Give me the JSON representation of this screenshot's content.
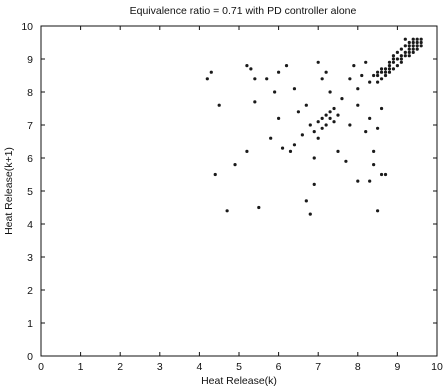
{
  "chart_data": {
    "type": "scatter",
    "title": "Equivalence ratio = 0.71 with PD controller alone",
    "xlabel": "Heat Release(k)",
    "ylabel": "Heat Release(k+1)",
    "xlim": [
      0,
      10
    ],
    "ylim": [
      0,
      10
    ],
    "x_ticks": [
      "0",
      "1",
      "2",
      "3",
      "4",
      "5",
      "6",
      "7",
      "8",
      "9",
      "10"
    ],
    "y_ticks": [
      "0",
      "1",
      "2",
      "3",
      "4",
      "5",
      "6",
      "7",
      "8",
      "9",
      "10"
    ],
    "grid": false,
    "marker_color": "#1a1a1a",
    "points": [
      [
        4.2,
        8.4
      ],
      [
        4.3,
        8.6
      ],
      [
        4.5,
        7.6
      ],
      [
        4.4,
        5.5
      ],
      [
        4.7,
        4.4
      ],
      [
        4.9,
        5.8
      ],
      [
        5.2,
        8.8
      ],
      [
        5.3,
        8.7
      ],
      [
        5.4,
        8.4
      ],
      [
        5.4,
        7.7
      ],
      [
        5.2,
        6.2
      ],
      [
        5.5,
        4.5
      ],
      [
        5.7,
        8.4
      ],
      [
        5.8,
        6.6
      ],
      [
        5.9,
        8.0
      ],
      [
        6.0,
        7.2
      ],
      [
        6.1,
        6.3
      ],
      [
        6.0,
        8.6
      ],
      [
        6.2,
        8.8
      ],
      [
        6.3,
        6.2
      ],
      [
        6.4,
        8.1
      ],
      [
        6.4,
        6.4
      ],
      [
        6.5,
        7.4
      ],
      [
        6.6,
        6.7
      ],
      [
        6.7,
        4.7
      ],
      [
        6.8,
        4.3
      ],
      [
        6.9,
        5.2
      ],
      [
        6.9,
        6.0
      ],
      [
        6.7,
        7.6
      ],
      [
        6.8,
        7.0
      ],
      [
        6.9,
        6.8
      ],
      [
        7.0,
        7.1
      ],
      [
        7.0,
        6.6
      ],
      [
        7.1,
        7.2
      ],
      [
        7.1,
        6.9
      ],
      [
        7.2,
        7.3
      ],
      [
        7.2,
        7.0
      ],
      [
        7.3,
        7.2
      ],
      [
        7.3,
        7.4
      ],
      [
        7.4,
        7.1
      ],
      [
        7.4,
        7.5
      ],
      [
        7.5,
        7.3
      ],
      [
        7.0,
        8.9
      ],
      [
        7.1,
        8.4
      ],
      [
        7.2,
        8.6
      ],
      [
        7.3,
        8.0
      ],
      [
        7.5,
        6.2
      ],
      [
        7.6,
        7.8
      ],
      [
        7.7,
        5.9
      ],
      [
        7.8,
        8.4
      ],
      [
        7.9,
        8.8
      ],
      [
        7.8,
        7.0
      ],
      [
        8.0,
        5.3
      ],
      [
        8.0,
        7.6
      ],
      [
        8.1,
        8.5
      ],
      [
        8.2,
        6.8
      ],
      [
        8.2,
        8.9
      ],
      [
        8.3,
        5.3
      ],
      [
        8.3,
        7.2
      ],
      [
        8.4,
        6.2
      ],
      [
        8.4,
        5.8
      ],
      [
        8.5,
        4.4
      ],
      [
        8.5,
        6.9
      ],
      [
        8.6,
        5.5
      ],
      [
        8.6,
        7.5
      ],
      [
        8.7,
        5.5
      ],
      [
        8.0,
        8.1
      ],
      [
        8.3,
        8.3
      ],
      [
        8.5,
        8.5
      ],
      [
        8.6,
        8.6
      ],
      [
        8.7,
        8.7
      ],
      [
        8.8,
        8.8
      ],
      [
        8.9,
        8.9
      ],
      [
        9.0,
        9.0
      ],
      [
        9.1,
        9.1
      ],
      [
        9.2,
        9.2
      ],
      [
        9.3,
        9.3
      ],
      [
        9.4,
        9.4
      ],
      [
        8.4,
        8.5
      ],
      [
        8.5,
        8.3
      ],
      [
        8.6,
        8.4
      ],
      [
        8.7,
        8.6
      ],
      [
        8.8,
        8.9
      ],
      [
        8.9,
        8.7
      ],
      [
        9.0,
        8.8
      ],
      [
        9.1,
        9.0
      ],
      [
        9.2,
        9.4
      ],
      [
        9.3,
        9.2
      ],
      [
        9.4,
        9.6
      ],
      [
        9.5,
        9.3
      ],
      [
        9.5,
        9.5
      ],
      [
        9.6,
        9.4
      ],
      [
        9.3,
        9.5
      ],
      [
        9.4,
        9.2
      ],
      [
        9.5,
        9.6
      ],
      [
        9.6,
        9.6
      ],
      [
        9.2,
        9.6
      ],
      [
        9.1,
        9.3
      ],
      [
        9.0,
        9.2
      ],
      [
        8.9,
        9.0
      ],
      [
        8.8,
        8.6
      ],
      [
        8.7,
        8.5
      ],
      [
        8.6,
        8.7
      ],
      [
        8.5,
        8.6
      ],
      [
        9.4,
        9.3
      ],
      [
        9.3,
        9.4
      ],
      [
        9.6,
        9.5
      ],
      [
        9.5,
        9.4
      ],
      [
        9.4,
        9.5
      ],
      [
        9.3,
        9.1
      ],
      [
        9.2,
        9.1
      ],
      [
        9.1,
        8.9
      ],
      [
        8.9,
        9.1
      ],
      [
        8.8,
        8.7
      ]
    ]
  }
}
